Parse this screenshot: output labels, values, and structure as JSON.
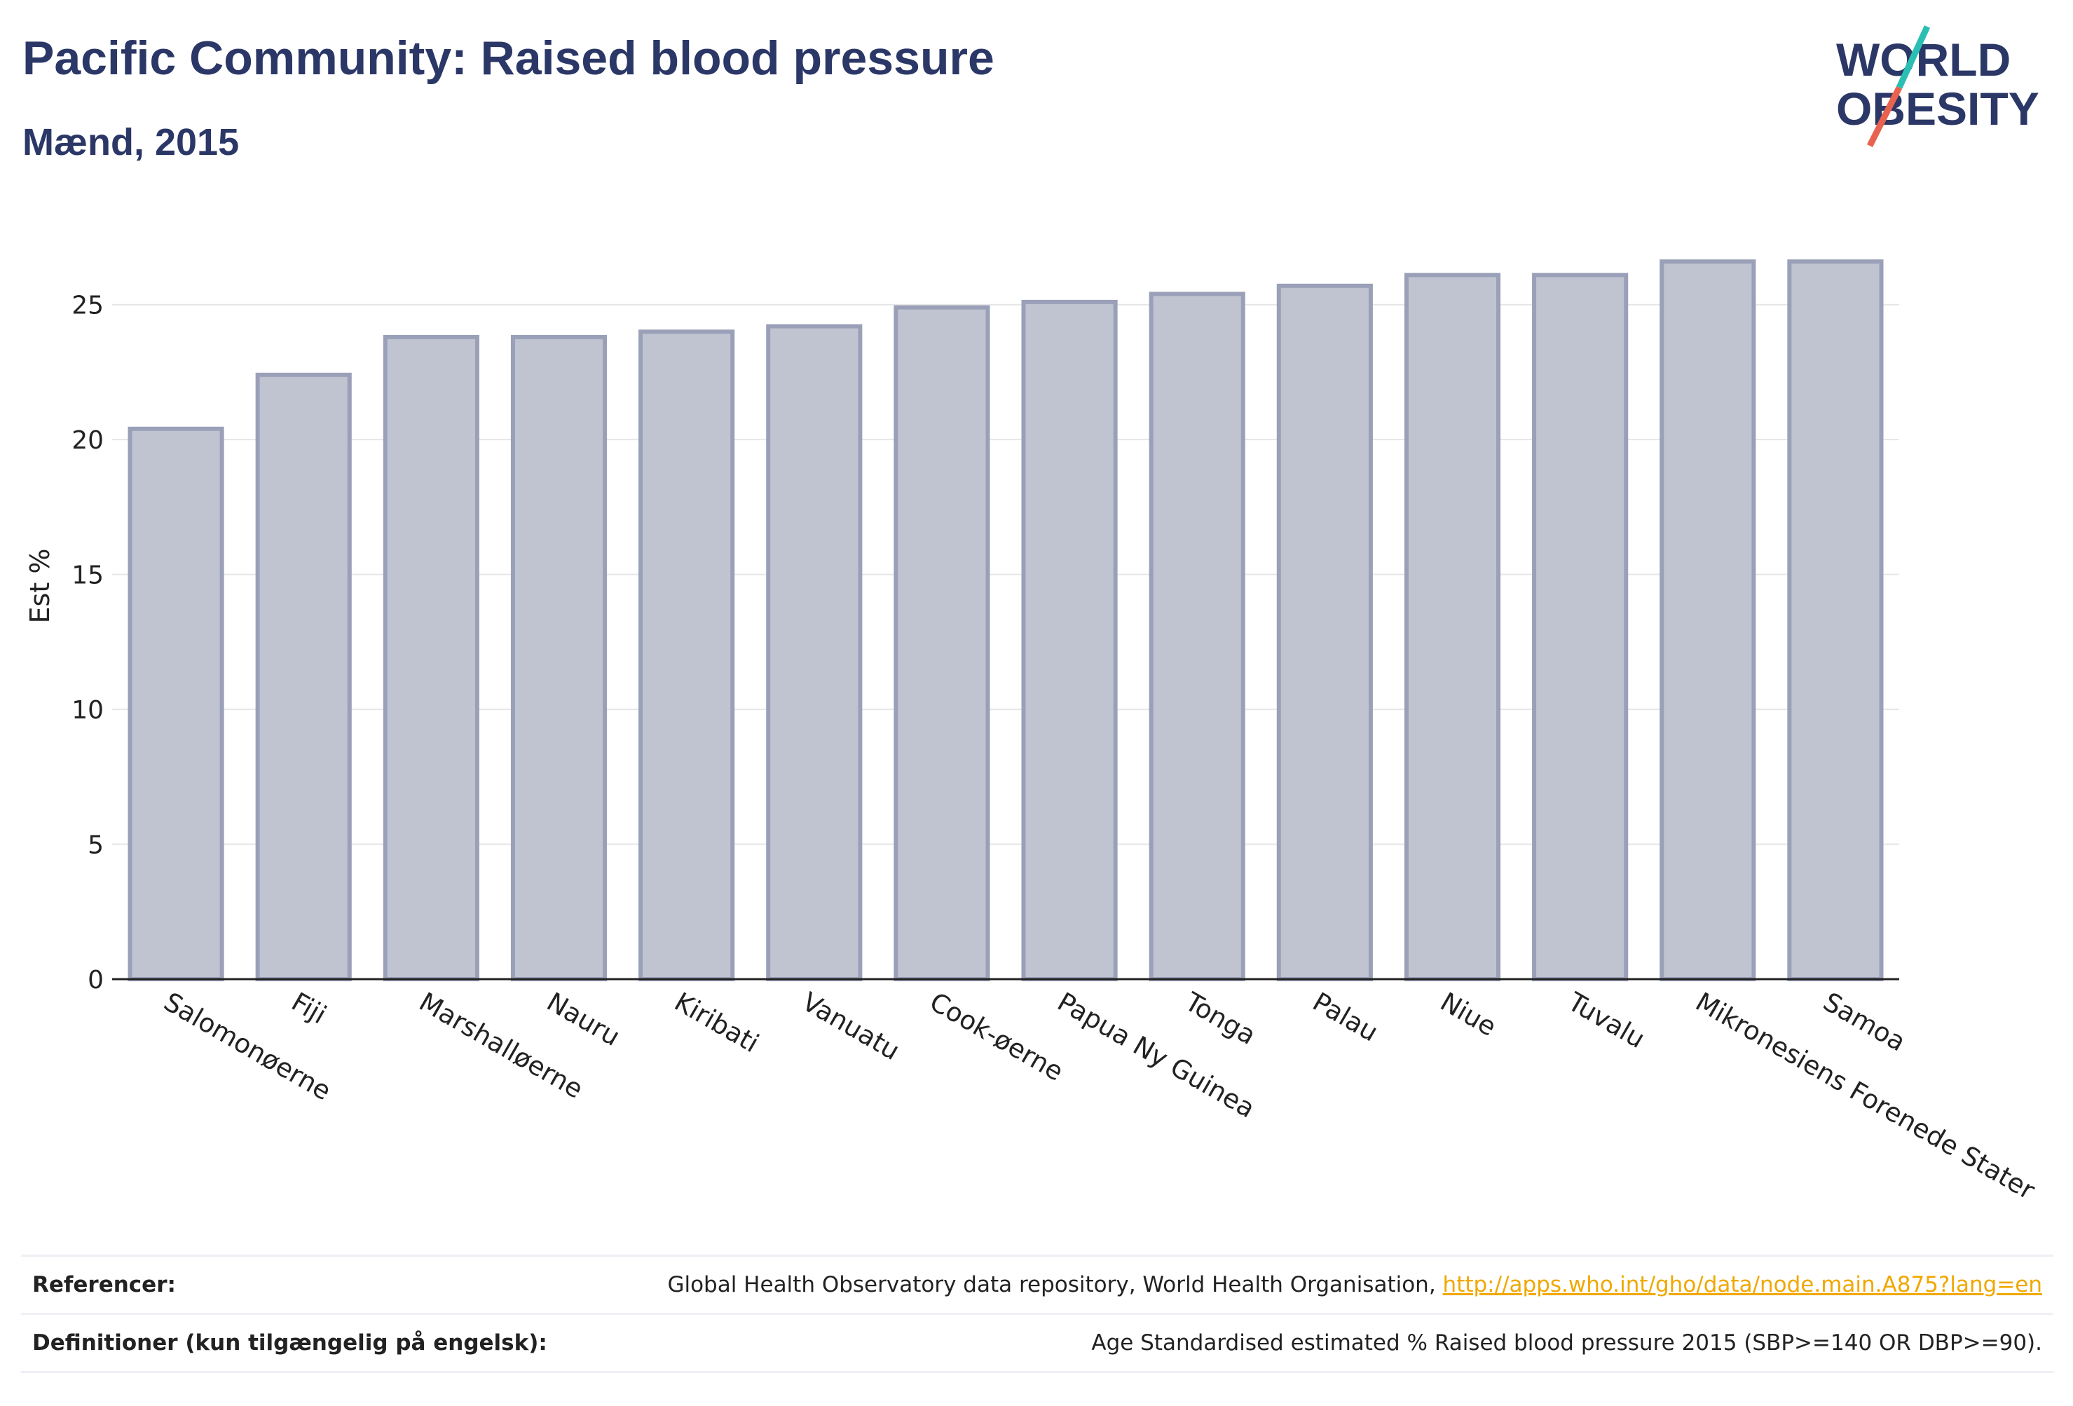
{
  "header": {
    "title": "Pacific Community: Raised blood pressure",
    "subtitle": "Mænd, 2015"
  },
  "logo": {
    "line1": "WORLD",
    "line2": "OBESITY",
    "accent_colors": [
      "#2bbfb3",
      "#e8634f"
    ],
    "text_color": "#2b3766"
  },
  "colors": {
    "bar_fill": "#c0c4d1",
    "bar_stroke": "#9aa0b8",
    "grid": "#e6e6e6",
    "axis": "#222222",
    "title": "#2b3766",
    "link": "#f0a800"
  },
  "chart_data": {
    "type": "bar",
    "categories": [
      "Salomonøerne",
      "Fiji",
      "Marshalløerne",
      "Nauru",
      "Kiribati",
      "Vanuatu",
      "Cook-øerne",
      "Papua Ny Guinea",
      "Tonga",
      "Palau",
      "Niue",
      "Tuvalu",
      "Mikronesiens Forenede Stater",
      "Samoa"
    ],
    "values": [
      20.4,
      22.4,
      23.8,
      23.8,
      24.0,
      24.2,
      24.9,
      25.1,
      25.4,
      25.7,
      26.1,
      26.1,
      26.6,
      26.6
    ],
    "ylabel": "Est %",
    "xlabel": "",
    "ylim": [
      0,
      28.5
    ],
    "yticks": [
      0,
      5,
      10,
      15,
      20,
      25
    ],
    "grid": true,
    "legend": "none"
  },
  "references": {
    "label": "Referencer:",
    "text": "Global Health Observatory data repository, World Health Organisation, ",
    "link": "http://apps.who.int/gho/data/node.main.A875?lang=en"
  },
  "definitions": {
    "label": "Definitioner (kun tilgængelig på engelsk):",
    "text": "Age Standardised estimated % Raised blood pressure 2015 (SBP>=140 OR DBP>=90)."
  }
}
